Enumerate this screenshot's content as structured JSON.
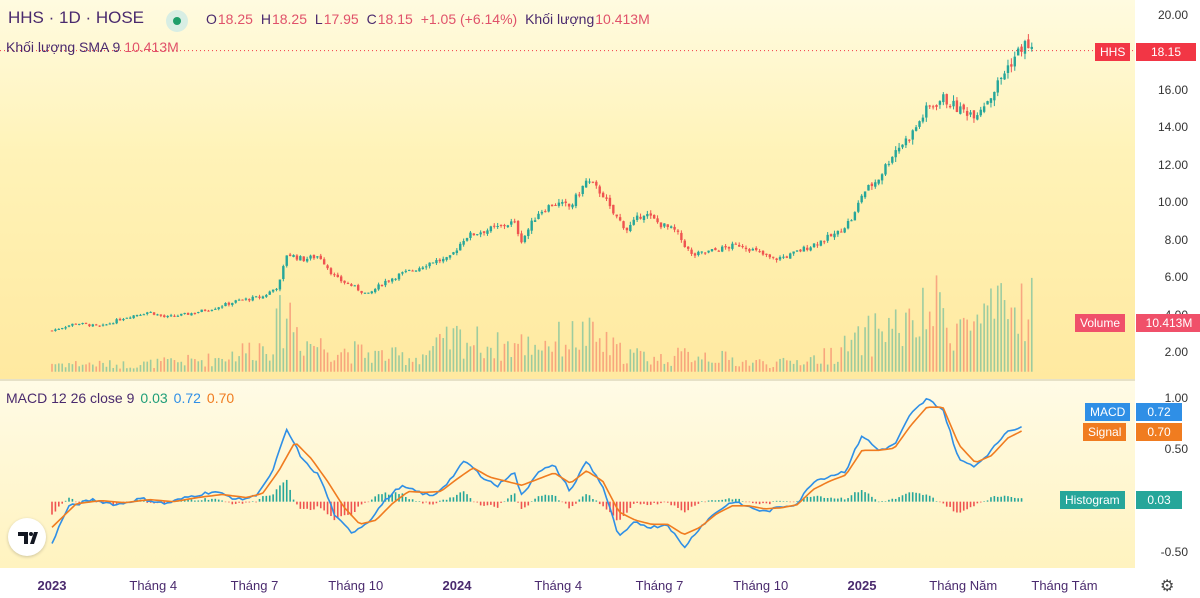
{
  "header": {
    "symbol": "HHS · 1D · HOSE",
    "ohlc": [
      {
        "key": "O",
        "value": "18.25"
      },
      {
        "key": "H",
        "value": "18.25"
      },
      {
        "key": "L",
        "value": "17.95"
      },
      {
        "key": "C",
        "value": "18.15"
      }
    ],
    "change": "+1.05 (+6.14%)",
    "volume_label": "Khối lượng",
    "volume_value": "10.413M",
    "sma_label": "Khối lượng SMA 9",
    "sma_value": "10.413M"
  },
  "macd_legend": {
    "label": "MACD 12 26 close 9",
    "histogram": "0.03",
    "macd": "0.72",
    "signal": "0.70"
  },
  "tags": {
    "price_name": "HHS",
    "price_value": "18.15",
    "volume_name": "Volume",
    "volume_value": "10.413M",
    "macd_name": "MACD",
    "macd_value": "0.72",
    "signal_name": "Signal",
    "signal_value": "0.70",
    "hist_name": "Histogram",
    "hist_value": "0.03"
  },
  "colors": {
    "up": "#26a69a",
    "down": "#ef5350",
    "macd": "#2f8fe6",
    "signal": "#f07c20",
    "text": "#4a2a6e",
    "price_tag": "#f23645"
  },
  "icons": {
    "logo": "tradingview-logo-icon",
    "settings": "gear-icon",
    "visibility": "eye-dot-icon"
  },
  "chart_data": {
    "type": "candlestick",
    "price_axis": {
      "ticks": [
        "20.00",
        "18.00",
        "16.00",
        "14.00",
        "12.00",
        "10.00",
        "8.00",
        "6.00",
        "4.00",
        "2.00"
      ],
      "ylim": [
        1,
        20.3
      ]
    },
    "macd_axis": {
      "ticks": [
        "1.00",
        "0.50",
        "-0.50"
      ],
      "ylim": [
        -0.62,
        1.02
      ]
    },
    "x_ticks": [
      {
        "label": "2023",
        "year": true,
        "pos": 0.0
      },
      {
        "label": "Tháng 4",
        "year": false,
        "pos": 0.125
      },
      {
        "label": "Tháng 7",
        "year": false,
        "pos": 0.25
      },
      {
        "label": "Tháng 10",
        "year": false,
        "pos": 0.375
      },
      {
        "label": "2024",
        "year": true,
        "pos": 0.5
      },
      {
        "label": "Tháng 4",
        "year": false,
        "pos": 0.625
      },
      {
        "label": "Tháng 7",
        "year": false,
        "pos": 0.75
      },
      {
        "label": "Tháng 10",
        "year": false,
        "pos": 0.875
      },
      {
        "label": "2025",
        "year": true,
        "pos": 1.0
      },
      {
        "label": "Tháng Năm",
        "year": false,
        "pos": 1.125
      },
      {
        "label": "Tháng Tám",
        "year": false,
        "pos": 1.25
      }
    ],
    "close_path": [
      [
        0.0,
        3.2
      ],
      [
        0.03,
        3.6
      ],
      [
        0.06,
        3.4
      ],
      [
        0.09,
        3.9
      ],
      [
        0.12,
        4.2
      ],
      [
        0.14,
        3.9
      ],
      [
        0.17,
        4.1
      ],
      [
        0.2,
        4.4
      ],
      [
        0.23,
        4.8
      ],
      [
        0.26,
        5.0
      ],
      [
        0.28,
        5.6
      ],
      [
        0.29,
        7.3
      ],
      [
        0.31,
        7.0
      ],
      [
        0.33,
        7.2
      ],
      [
        0.35,
        6.0
      ],
      [
        0.37,
        5.6
      ],
      [
        0.39,
        5.1
      ],
      [
        0.41,
        5.8
      ],
      [
        0.43,
        6.2
      ],
      [
        0.45,
        6.5
      ],
      [
        0.47,
        6.9
      ],
      [
        0.49,
        7.0
      ],
      [
        0.51,
        8.2
      ],
      [
        0.53,
        8.5
      ],
      [
        0.55,
        8.7
      ],
      [
        0.57,
        9.0
      ],
      [
        0.58,
        8.0
      ],
      [
        0.6,
        9.5
      ],
      [
        0.62,
        10.0
      ],
      [
        0.64,
        9.8
      ],
      [
        0.66,
        11.2
      ],
      [
        0.68,
        10.5
      ],
      [
        0.69,
        9.6
      ],
      [
        0.71,
        8.6
      ],
      [
        0.73,
        9.5
      ],
      [
        0.75,
        8.9
      ],
      [
        0.77,
        8.5
      ],
      [
        0.79,
        7.2
      ],
      [
        0.81,
        7.4
      ],
      [
        0.83,
        7.6
      ],
      [
        0.85,
        7.8
      ],
      [
        0.87,
        7.4
      ],
      [
        0.89,
        7.0
      ],
      [
        0.91,
        7.2
      ],
      [
        0.93,
        7.6
      ],
      [
        0.95,
        8.0
      ],
      [
        0.97,
        8.4
      ],
      [
        0.99,
        9.3
      ],
      [
        1.0,
        10.5
      ],
      [
        1.02,
        11.3
      ],
      [
        1.04,
        12.8
      ],
      [
        1.06,
        13.6
      ],
      [
        1.08,
        15.0
      ],
      [
        1.1,
        15.6
      ],
      [
        1.12,
        15.0
      ],
      [
        1.14,
        14.8
      ],
      [
        1.16,
        15.8
      ],
      [
        1.18,
        17.3
      ],
      [
        1.2,
        18.5
      ],
      [
        1.21,
        18.15
      ]
    ],
    "macd_path": [
      [
        0.0,
        -0.4
      ],
      [
        0.02,
        -0.05
      ],
      [
        0.05,
        0.02
      ],
      [
        0.08,
        -0.03
      ],
      [
        0.11,
        0.03
      ],
      [
        0.14,
        -0.02
      ],
      [
        0.17,
        0.05
      ],
      [
        0.2,
        0.1
      ],
      [
        0.23,
        0.02
      ],
      [
        0.25,
        0.05
      ],
      [
        0.27,
        0.25
      ],
      [
        0.29,
        0.7
      ],
      [
        0.31,
        0.4
      ],
      [
        0.33,
        0.25
      ],
      [
        0.35,
        -0.15
      ],
      [
        0.37,
        -0.3
      ],
      [
        0.39,
        -0.2
      ],
      [
        0.41,
        0.0
      ],
      [
        0.43,
        0.15
      ],
      [
        0.45,
        0.1
      ],
      [
        0.47,
        0.05
      ],
      [
        0.49,
        0.2
      ],
      [
        0.51,
        0.4
      ],
      [
        0.53,
        0.25
      ],
      [
        0.55,
        0.15
      ],
      [
        0.57,
        0.3
      ],
      [
        0.58,
        0.05
      ],
      [
        0.6,
        0.3
      ],
      [
        0.62,
        0.35
      ],
      [
        0.64,
        0.1
      ],
      [
        0.66,
        0.4
      ],
      [
        0.68,
        0.15
      ],
      [
        0.7,
        -0.35
      ],
      [
        0.72,
        -0.2
      ],
      [
        0.74,
        -0.25
      ],
      [
        0.76,
        -0.22
      ],
      [
        0.78,
        -0.45
      ],
      [
        0.8,
        -0.25
      ],
      [
        0.82,
        -0.1
      ],
      [
        0.84,
        0.0
      ],
      [
        0.86,
        -0.05
      ],
      [
        0.88,
        -0.1
      ],
      [
        0.9,
        -0.05
      ],
      [
        0.92,
        -0.02
      ],
      [
        0.94,
        0.2
      ],
      [
        0.96,
        0.25
      ],
      [
        0.98,
        0.3
      ],
      [
        1.0,
        0.65
      ],
      [
        1.02,
        0.5
      ],
      [
        1.04,
        0.55
      ],
      [
        1.06,
        0.85
      ],
      [
        1.08,
        1.0
      ],
      [
        1.1,
        0.9
      ],
      [
        1.12,
        0.4
      ],
      [
        1.14,
        0.35
      ],
      [
        1.16,
        0.5
      ],
      [
        1.18,
        0.7
      ],
      [
        1.2,
        0.72
      ]
    ],
    "signal_path": [
      [
        0.0,
        -0.25
      ],
      [
        0.03,
        -0.02
      ],
      [
        0.06,
        0.01
      ],
      [
        0.09,
        -0.01
      ],
      [
        0.12,
        0.02
      ],
      [
        0.15,
        0.0
      ],
      [
        0.18,
        0.04
      ],
      [
        0.21,
        0.07
      ],
      [
        0.24,
        0.04
      ],
      [
        0.26,
        0.08
      ],
      [
        0.28,
        0.3
      ],
      [
        0.3,
        0.58
      ],
      [
        0.32,
        0.42
      ],
      [
        0.34,
        0.2
      ],
      [
        0.36,
        -0.05
      ],
      [
        0.38,
        -0.22
      ],
      [
        0.4,
        -0.18
      ],
      [
        0.42,
        -0.02
      ],
      [
        0.44,
        0.1
      ],
      [
        0.46,
        0.09
      ],
      [
        0.48,
        0.1
      ],
      [
        0.5,
        0.22
      ],
      [
        0.52,
        0.33
      ],
      [
        0.54,
        0.24
      ],
      [
        0.56,
        0.2
      ],
      [
        0.58,
        0.16
      ],
      [
        0.6,
        0.22
      ],
      [
        0.62,
        0.28
      ],
      [
        0.64,
        0.18
      ],
      [
        0.66,
        0.3
      ],
      [
        0.68,
        0.2
      ],
      [
        0.7,
        -0.1
      ],
      [
        0.72,
        -0.18
      ],
      [
        0.74,
        -0.22
      ],
      [
        0.76,
        -0.22
      ],
      [
        0.78,
        -0.32
      ],
      [
        0.8,
        -0.25
      ],
      [
        0.82,
        -0.12
      ],
      [
        0.84,
        -0.04
      ],
      [
        0.86,
        -0.04
      ],
      [
        0.88,
        -0.07
      ],
      [
        0.9,
        -0.06
      ],
      [
        0.92,
        -0.03
      ],
      [
        0.94,
        0.12
      ],
      [
        0.96,
        0.2
      ],
      [
        0.98,
        0.26
      ],
      [
        1.0,
        0.5
      ],
      [
        1.02,
        0.5
      ],
      [
        1.04,
        0.52
      ],
      [
        1.06,
        0.74
      ],
      [
        1.08,
        0.92
      ],
      [
        1.1,
        0.92
      ],
      [
        1.12,
        0.55
      ],
      [
        1.14,
        0.38
      ],
      [
        1.16,
        0.45
      ],
      [
        1.18,
        0.62
      ],
      [
        1.2,
        0.7
      ]
    ],
    "volume_profile": [
      [
        0.0,
        0.6
      ],
      [
        0.1,
        0.5
      ],
      [
        0.2,
        0.9
      ],
      [
        0.27,
        2.0
      ],
      [
        0.29,
        4.5
      ],
      [
        0.31,
        2.2
      ],
      [
        0.35,
        1.6
      ],
      [
        0.4,
        1.2
      ],
      [
        0.45,
        1.0
      ],
      [
        0.5,
        2.4
      ],
      [
        0.55,
        1.8
      ],
      [
        0.6,
        2.0
      ],
      [
        0.66,
        2.6
      ],
      [
        0.7,
        1.4
      ],
      [
        0.75,
        0.9
      ],
      [
        0.8,
        1.3
      ],
      [
        0.85,
        0.7
      ],
      [
        0.9,
        0.6
      ],
      [
        0.95,
        1.0
      ],
      [
        1.0,
        2.2
      ],
      [
        1.03,
        3.4
      ],
      [
        1.06,
        3.0
      ],
      [
        1.09,
        4.5
      ],
      [
        1.12,
        3.2
      ],
      [
        1.15,
        3.6
      ],
      [
        1.18,
        4.2
      ],
      [
        1.21,
        5.0
      ]
    ]
  }
}
